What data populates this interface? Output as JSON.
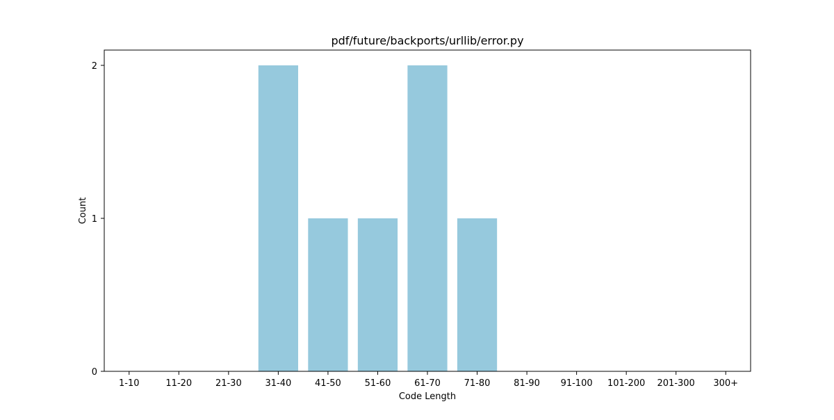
{
  "chart_data": {
    "type": "bar",
    "title": "pdf/future/backports/urllib/error.py",
    "xlabel": "Code Length",
    "ylabel": "Count",
    "categories": [
      "1-10",
      "11-20",
      "21-30",
      "31-40",
      "41-50",
      "51-60",
      "61-70",
      "71-80",
      "81-90",
      "91-100",
      "101-200",
      "201-300",
      "300+"
    ],
    "values": [
      0,
      0,
      0,
      2,
      1,
      1,
      2,
      1,
      0,
      0,
      0,
      0,
      0
    ],
    "ylim": [
      0,
      2.1
    ],
    "yticks": [
      0,
      1,
      2
    ],
    "grid": false,
    "bar_color": "#96c9dd"
  }
}
